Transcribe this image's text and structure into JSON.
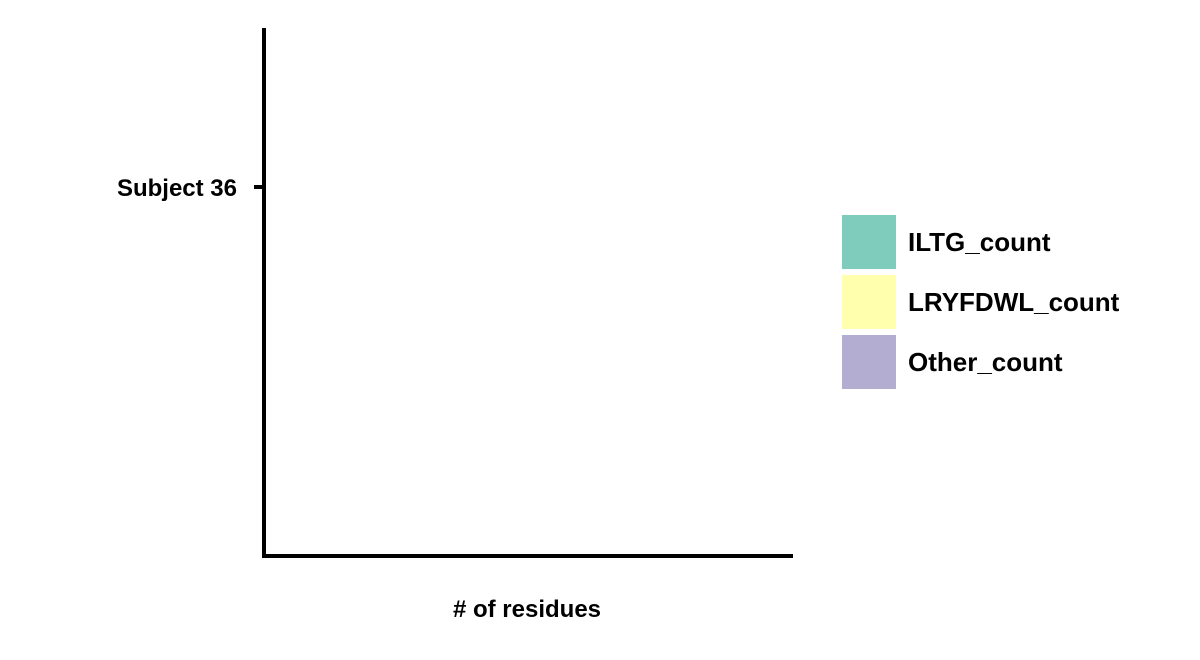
{
  "chart_data": {
    "type": "bar",
    "orientation": "horizontal",
    "stacked": true,
    "categories": [
      "Subject 36"
    ],
    "series": [
      {
        "name": "ILTG_count",
        "values": [
          0
        ],
        "color": "#7fccbc"
      },
      {
        "name": "LRYFDWL_count",
        "values": [
          0
        ],
        "color": "#ffffad"
      },
      {
        "name": "Other_count",
        "values": [
          0
        ],
        "color": "#b3add2"
      }
    ],
    "title": "",
    "xlabel": "# of residues",
    "ylabel": "",
    "grid": false,
    "legend_position": "right"
  }
}
